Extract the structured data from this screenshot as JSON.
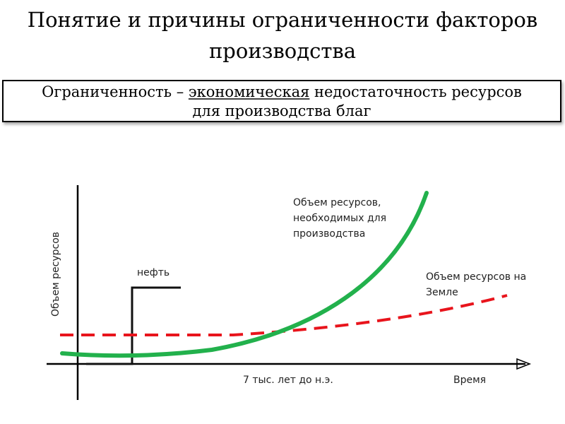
{
  "slide": {
    "title_line1": "Понятие и причины ограниченности факторов",
    "title_line2": "производства",
    "definition": {
      "term": "Ограниченность – ",
      "underlined": "экономическая",
      "rest_line1": " недостаточность ресурсов",
      "line2": "для производства благ"
    }
  },
  "diagram": {
    "y_axis_label": "Объем ресурсов",
    "x_axis_label": "Время",
    "x_tick_label": "7 тыс. лет до н.э.",
    "oil_label": "нефть",
    "needed_label": [
      "Объем ресурсов,",
      "необходимых для",
      "производства"
    ],
    "earth_label": [
      "Объем ресурсов на",
      "Земле"
    ],
    "colors": {
      "needed_curve": "#22b14c",
      "earth_curve": "#e8141c",
      "axes": "#000000"
    }
  }
}
